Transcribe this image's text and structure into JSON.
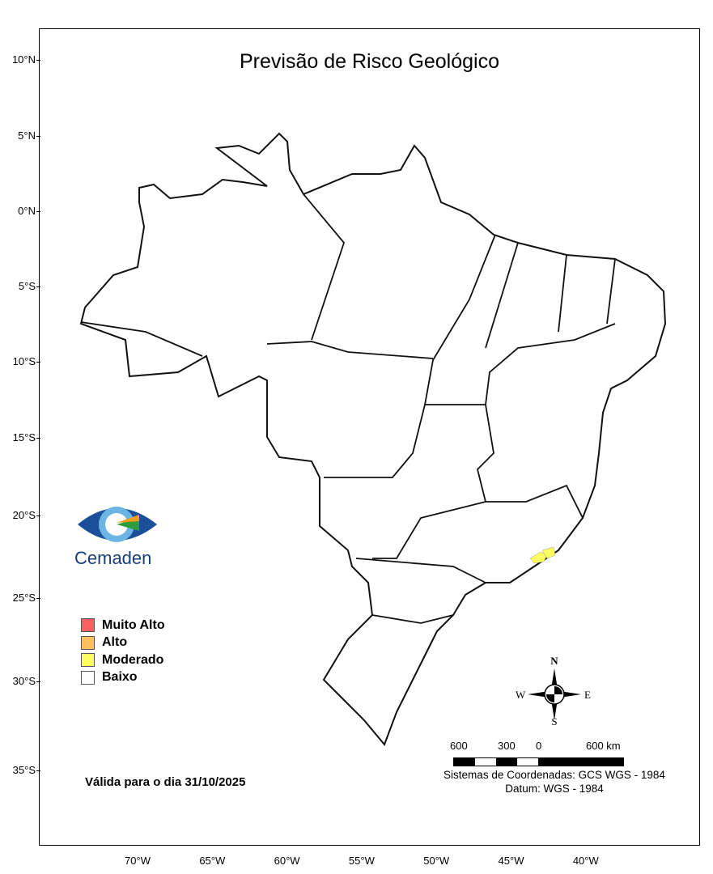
{
  "title": "Previsão de Risco Geológico",
  "lat_labels": [
    "10°N",
    "5°N",
    "0°N",
    "5°S",
    "10°S",
    "15°S",
    "20°S",
    "25°S",
    "30°S",
    "35°S"
  ],
  "lon_labels": [
    "70°W",
    "65°W",
    "60°W",
    "55°W",
    "50°W",
    "45°W",
    "40°W"
  ],
  "logo": {
    "text": "Cemaden"
  },
  "legend": [
    {
      "label": "Muito Alto",
      "color": "#ff6060"
    },
    {
      "label": "Alto",
      "color": "#ffc060"
    },
    {
      "label": "Moderado",
      "color": "#ffff60"
    },
    {
      "label": "Baixo",
      "color": "#ffffff"
    }
  ],
  "valid": "Válida para o dia 31/10/2025",
  "compass": {
    "n": "N",
    "s": "S",
    "e": "E",
    "w": "W"
  },
  "scale": {
    "labels": [
      "600",
      "300",
      "0",
      "600 km"
    ]
  },
  "coords": {
    "system": "Sistemas de Coordenadas: GCS WGS - 1984",
    "datum": "Datum: WGS - 1984"
  }
}
